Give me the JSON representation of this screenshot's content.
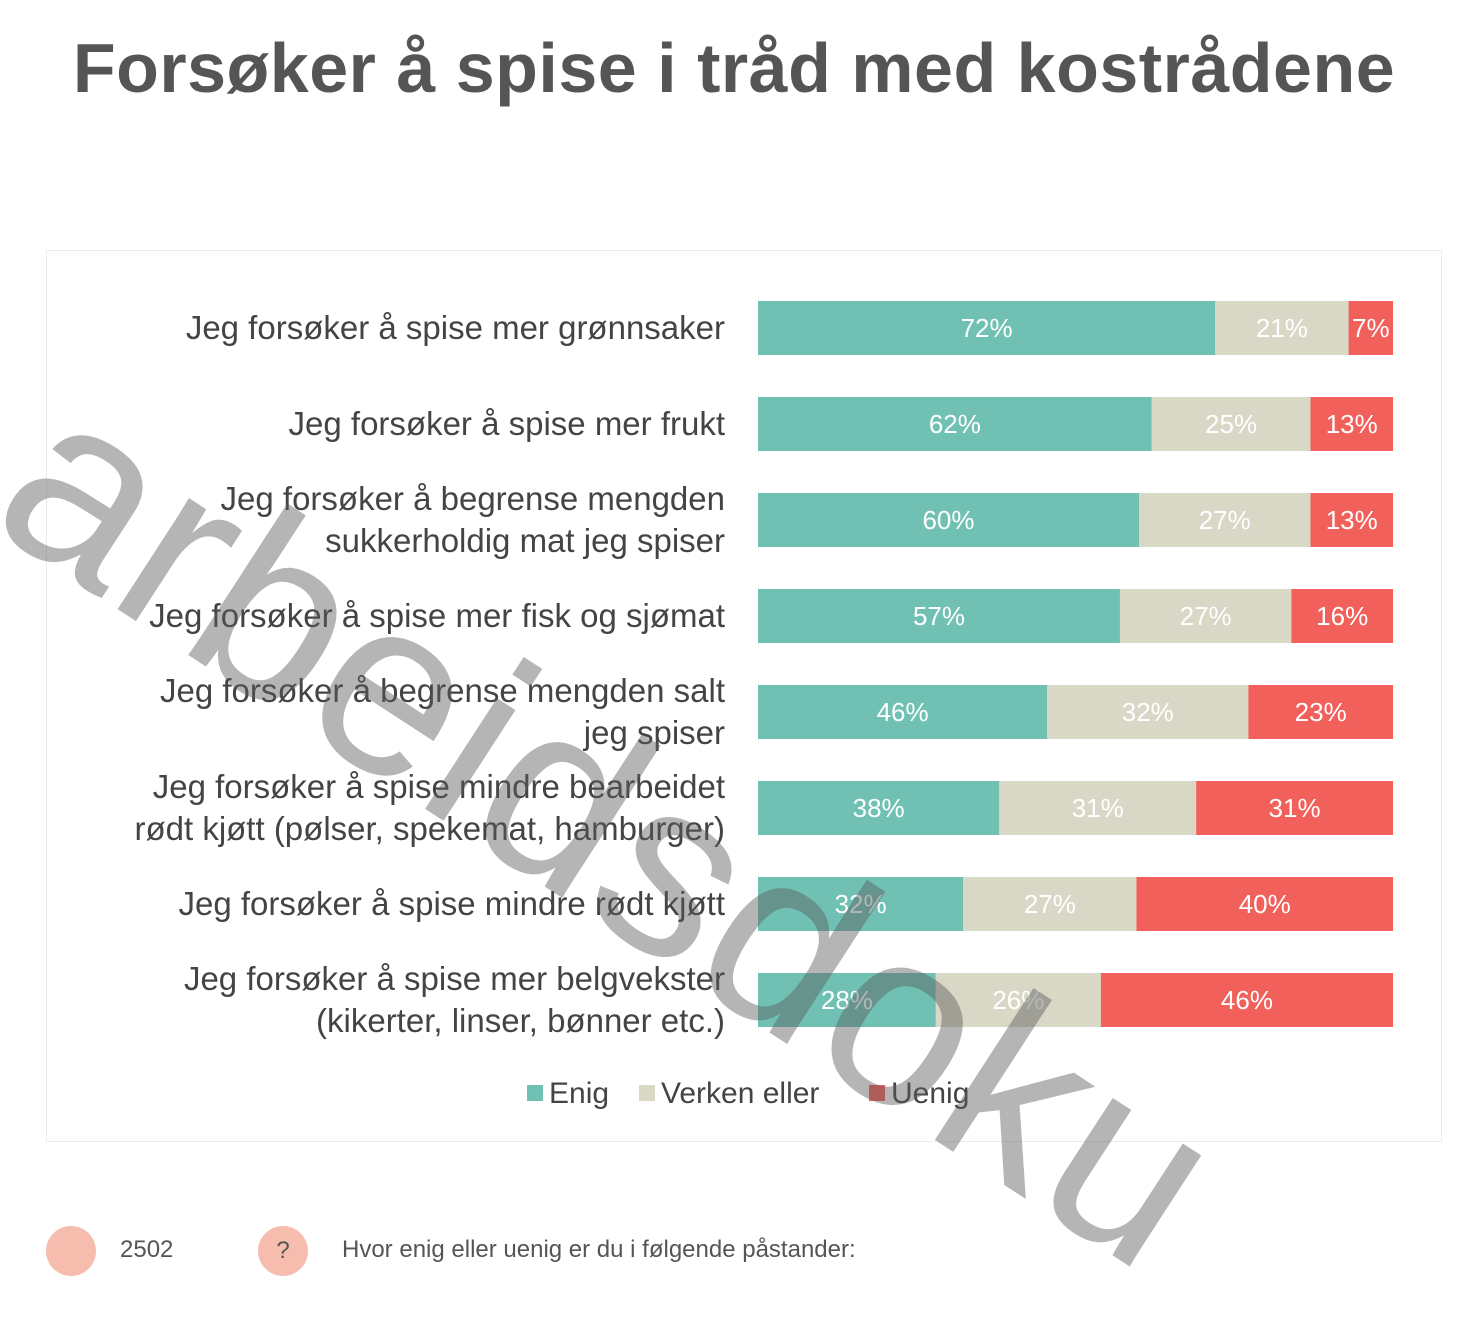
{
  "title": "Forsøker å spise i tråd med kostrådene",
  "watermark": "arbeidsdoku",
  "footer": {
    "count": "2502",
    "question_icon": "?",
    "question": "Hvor enig eller uenig er du i følgende påstander:"
  },
  "colors": {
    "enig": "#70c1b3",
    "verken": "#d9d7c5",
    "uenig": "#f2605c",
    "label": "#444444"
  },
  "chart_data": {
    "type": "bar",
    "orientation": "horizontal",
    "stacked": true,
    "title": "",
    "categories": [
      [
        "Jeg forsøker å spise mer grønnsaker"
      ],
      [
        "Jeg forsøker å spise mer frukt"
      ],
      [
        "Jeg forsøker å begrense mengden",
        "sukkerholdig mat jeg spiser"
      ],
      [
        "Jeg forsøker å spise mer fisk og sjømat"
      ],
      [
        "Jeg forsøker å begrense mengden salt",
        "jeg spiser"
      ],
      [
        "Jeg forsøker å spise mindre bearbeidet",
        "rødt kjøtt (pølser, spekemat, hamburger)"
      ],
      [
        "Jeg forsøker å spise mindre rødt kjøtt"
      ],
      [
        "Jeg forsøker å spise mer belgvekster",
        "(kikerter, linser, bønner etc.)"
      ]
    ],
    "series": [
      {
        "name": "Enig",
        "values": [
          72,
          62,
          60,
          57,
          46,
          38,
          32,
          28
        ]
      },
      {
        "name": "Verken eller",
        "values": [
          21,
          25,
          27,
          27,
          32,
          31,
          27,
          26
        ]
      },
      {
        "name": "Uenig",
        "values": [
          7,
          13,
          13,
          16,
          23,
          31,
          40,
          46
        ]
      }
    ],
    "value_suffix": "%",
    "legend_position": "bottom",
    "grid": false
  }
}
